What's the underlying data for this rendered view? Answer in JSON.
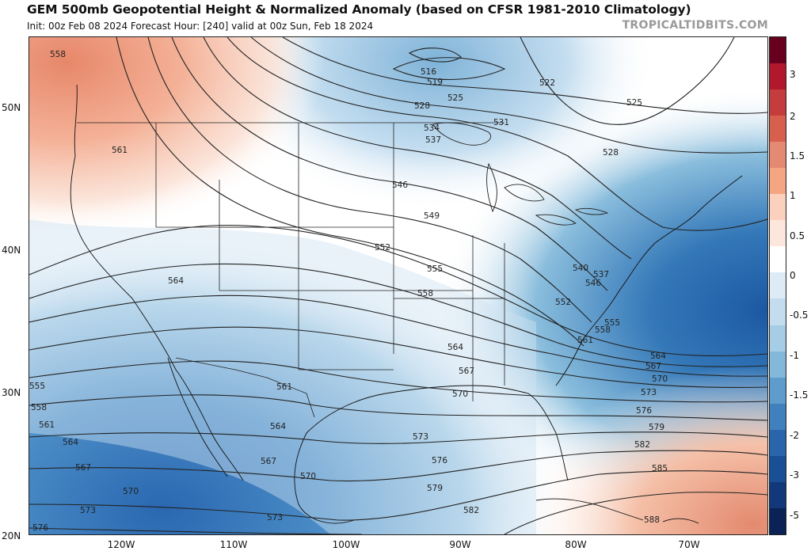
{
  "header": {
    "title": "GEM 500mb Geopotential Height & Normalized Anomaly (based on CFSR 1981-2010 Climatology)",
    "subtitle": "Init: 00z Feb 08 2024   Forecast Hour: [240]   valid at 00z Sun, Feb 18 2024",
    "brand": "TROPICALTIDBITS.COM"
  },
  "map": {
    "lat_labels": [
      "50N",
      "40N",
      "30N",
      "20N"
    ],
    "lon_labels": [
      "120W",
      "110W",
      "100W",
      "90W",
      "80W",
      "70W"
    ],
    "contour_labels": [
      "558",
      "561",
      "564",
      "555",
      "558",
      "561",
      "564",
      "567",
      "570",
      "573",
      "576",
      "516",
      "519",
      "522",
      "525",
      "528",
      "525",
      "531",
      "534",
      "537",
      "528",
      "546",
      "549",
      "552",
      "555",
      "558",
      "540",
      "537",
      "546",
      "552",
      "555",
      "558",
      "561",
      "564",
      "567",
      "570",
      "573",
      "576",
      "579",
      "582",
      "585",
      "588",
      "564",
      "567",
      "570",
      "561",
      "564",
      "567",
      "570",
      "573",
      "576",
      "579",
      "582",
      "573"
    ]
  },
  "colorbar": {
    "labels": [
      "3",
      "2",
      "1.5",
      "1",
      "0.5",
      "0",
      "-0.5",
      "-1",
      "-1.5",
      "-2",
      "-3",
      "-5"
    ],
    "colors": [
      "#67001f",
      "#b2182b",
      "#c43c3c",
      "#d6604d",
      "#e48a72",
      "#f4a582",
      "#fbd0bc",
      "#fde6dc",
      "#ffffff",
      "#ddebf6",
      "#c3dcee",
      "#a5cde6",
      "#84b8da",
      "#5f9ccb",
      "#3f80bd",
      "#2a65ab",
      "#1a4f96",
      "#13387a",
      "#0a2256"
    ]
  }
}
